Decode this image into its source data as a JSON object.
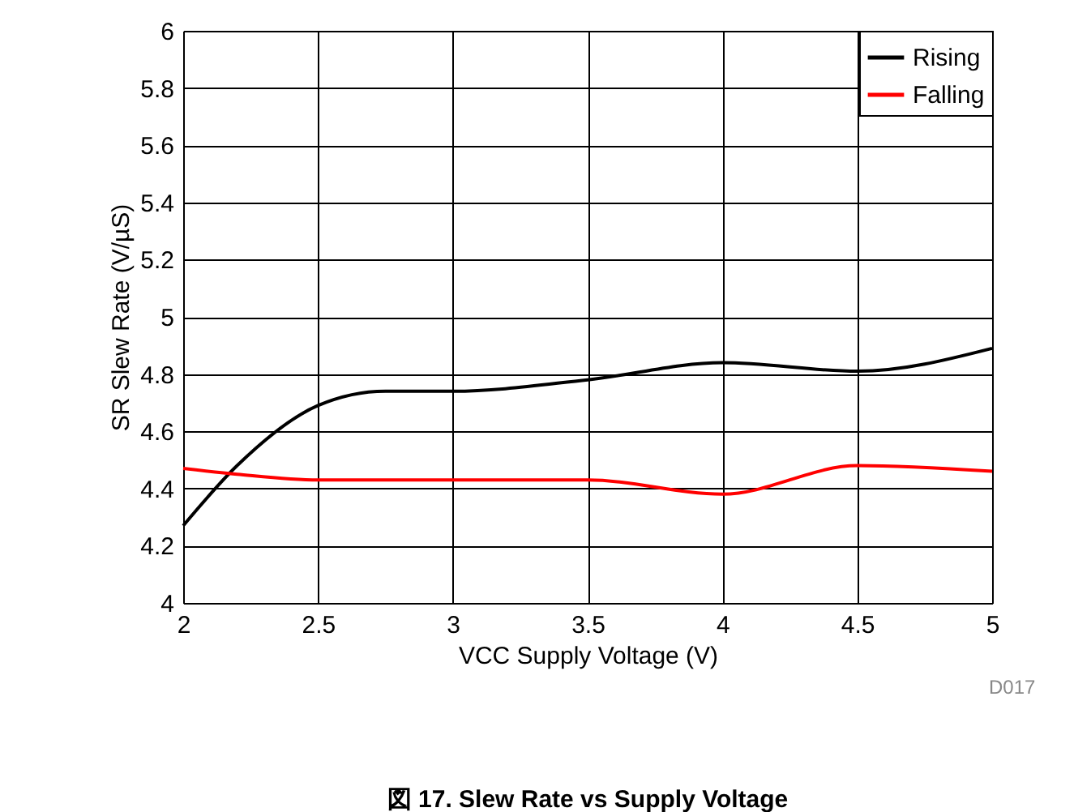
{
  "chart_data": {
    "type": "line",
    "title": "図 17. Slew Rate vs Supply Voltage",
    "xlabel": "VCC Supply Voltage (V)",
    "ylabel": "SR Slew Rate (V/µS)",
    "annotations": [
      "D017"
    ],
    "x": [
      2,
      2.2,
      2.5,
      2.75,
      3,
      3.5,
      4,
      4.5,
      5
    ],
    "series": [
      {
        "name": "Rising",
        "color": "#000000",
        "values": [
          4.27,
          4.48,
          4.69,
          4.74,
          4.74,
          4.78,
          4.84,
          4.81,
          4.89
        ]
      },
      {
        "name": "Falling",
        "color": "#ff0000",
        "values": [
          4.47,
          4.45,
          4.43,
          4.43,
          4.43,
          4.43,
          4.38,
          4.48,
          4.46
        ]
      }
    ],
    "xlim": [
      2,
      5
    ],
    "xticks": [
      2,
      2.5,
      3,
      3.5,
      4,
      4.5,
      5
    ],
    "ylim": [
      4,
      6
    ],
    "yticks": [
      4,
      4.2,
      4.4,
      4.6,
      4.8,
      5,
      5.2,
      5.4,
      5.6,
      5.8,
      6
    ],
    "grid": true,
    "legend": "top right",
    "line_style": "solid",
    "marker": "none"
  }
}
